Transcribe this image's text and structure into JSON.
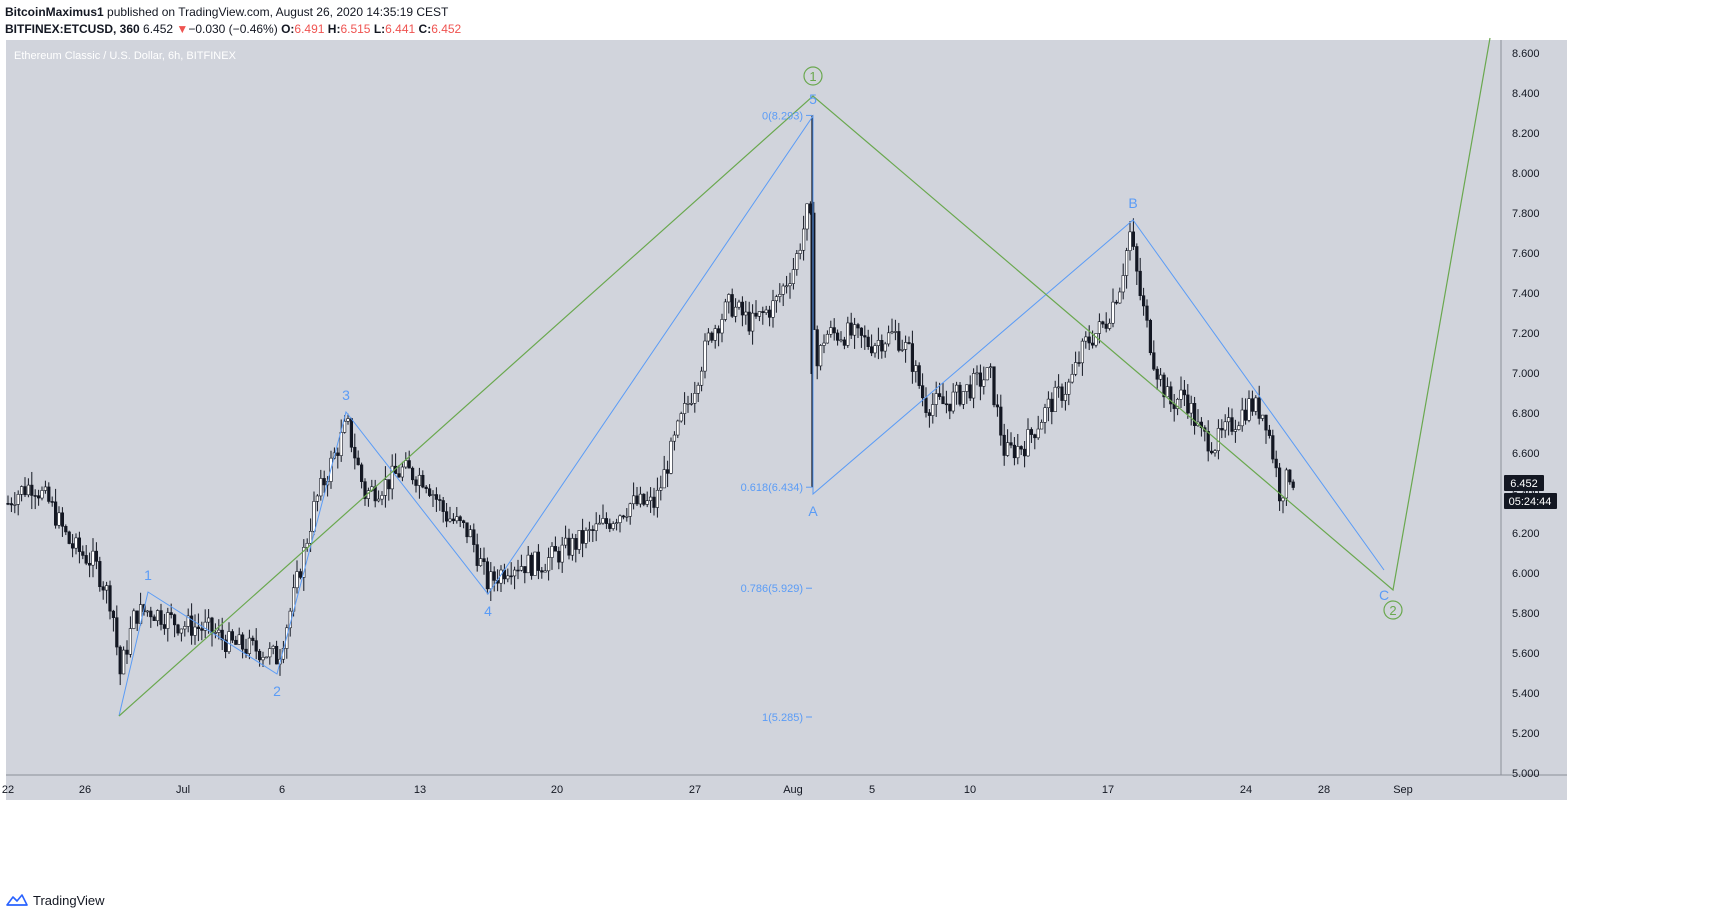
{
  "header": {
    "publisher": "BitcoinMaximus1",
    "published_text": "published on TradingView.com, August 26, 2020 14:35:19 CEST",
    "symbol": "BITFINEX:ETCUSD, 360",
    "last": "6.452",
    "change_arrow": "▼",
    "change": "−0.030 (−0.46%)",
    "o_label": "O:",
    "o_value": "6.491",
    "h_label": "H:",
    "h_value": "6.515",
    "l_label": "L:",
    "l_value": "6.441",
    "c_label": "C:",
    "c_value": "6.452"
  },
  "chart": {
    "watermark": "Ethereum Classic / U.S. Dollar, 6h, BITFINEX",
    "price_tag": "6.452",
    "countdown_tag": "05:24:44"
  },
  "footer": {
    "brand": "TradingView",
    "logo_icon": "tradingview-logo-icon"
  },
  "colors": {
    "plot_bg": "#d1d4dc",
    "candle": "#131722",
    "blue": "#5b9cf6",
    "green": "#6aa84f",
    "price_tag_bg": "#131722"
  },
  "chart_data": {
    "type": "candlestick",
    "title": "Ethereum Classic / U.S. Dollar, 6h, BITFINEX",
    "x_ticks": [
      "22",
      "26",
      "Jul",
      "6",
      "13",
      "20",
      "27",
      "Aug",
      "5",
      "10",
      "17",
      "24",
      "28",
      "Sep"
    ],
    "y_ticks": [
      "8.600",
      "8.400",
      "8.200",
      "8.000",
      "7.800",
      "7.600",
      "7.400",
      "7.200",
      "7.000",
      "6.800",
      "6.600",
      "6.400",
      "6.200",
      "6.000",
      "5.800",
      "5.600",
      "5.400",
      "5.200",
      "5.000"
    ],
    "ylim": [
      5.0,
      8.65
    ],
    "price_path": [
      [
        0,
        6.3
      ],
      [
        15,
        6.4
      ],
      [
        33,
        6.45
      ],
      [
        50,
        6.35
      ],
      [
        70,
        6.15
      ],
      [
        95,
        6.05
      ],
      [
        112,
        5.85
      ],
      [
        120,
        5.5
      ],
      [
        135,
        5.8
      ],
      [
        150,
        5.82
      ],
      [
        180,
        5.75
      ],
      [
        210,
        5.72
      ],
      [
        230,
        5.65
      ],
      [
        260,
        5.62
      ],
      [
        278,
        5.58
      ],
      [
        292,
        5.85
      ],
      [
        315,
        6.35
      ],
      [
        335,
        6.6
      ],
      [
        347,
        6.75
      ],
      [
        365,
        6.4
      ],
      [
        385,
        6.45
      ],
      [
        402,
        6.52
      ],
      [
        425,
        6.48
      ],
      [
        445,
        6.3
      ],
      [
        470,
        6.2
      ],
      [
        488,
        5.95
      ],
      [
        510,
        6.05
      ],
      [
        540,
        6.05
      ],
      [
        575,
        6.15
      ],
      [
        605,
        6.25
      ],
      [
        630,
        6.35
      ],
      [
        655,
        6.35
      ],
      [
        680,
        6.75
      ],
      [
        695,
        6.95
      ],
      [
        710,
        7.2
      ],
      [
        730,
        7.35
      ],
      [
        752,
        7.25
      ],
      [
        775,
        7.35
      ],
      [
        795,
        7.55
      ],
      [
        808,
        7.82
      ],
      [
        812,
        7.7
      ],
      [
        815,
        7.0
      ],
      [
        825,
        7.2
      ],
      [
        850,
        7.2
      ],
      [
        870,
        7.15
      ],
      [
        895,
        7.2
      ],
      [
        910,
        7.1
      ],
      [
        925,
        6.85
      ],
      [
        945,
        6.85
      ],
      [
        960,
        6.9
      ],
      [
        975,
        6.95
      ],
      [
        990,
        7.0
      ],
      [
        1005,
        6.6
      ],
      [
        1025,
        6.65
      ],
      [
        1050,
        6.85
      ],
      [
        1070,
        6.95
      ],
      [
        1085,
        7.15
      ],
      [
        1105,
        7.25
      ],
      [
        1120,
        7.45
      ],
      [
        1130,
        7.7
      ],
      [
        1140,
        7.4
      ],
      [
        1155,
        7.05
      ],
      [
        1170,
        6.85
      ],
      [
        1185,
        6.9
      ],
      [
        1200,
        6.7
      ],
      [
        1215,
        6.65
      ],
      [
        1232,
        6.75
      ],
      [
        1250,
        6.85
      ],
      [
        1265,
        6.8
      ],
      [
        1275,
        6.55
      ],
      [
        1280,
        6.4
      ],
      [
        1290,
        6.5
      ],
      [
        1296,
        6.452
      ]
    ],
    "annotations": {
      "blue_wave_labels": [
        {
          "text": "1",
          "x": 148,
          "price": 5.91,
          "below": false
        },
        {
          "text": "2",
          "x": 277,
          "price": 5.5,
          "below": true
        },
        {
          "text": "3",
          "x": 346,
          "price": 6.81,
          "below": false
        },
        {
          "text": "4",
          "x": 488,
          "price": 5.9,
          "below": true
        },
        {
          "text": "5",
          "x": 813,
          "price": 8.29,
          "below": false
        },
        {
          "text": "A",
          "x": 813,
          "price": 6.4,
          "below": true
        },
        {
          "text": "B",
          "x": 1133,
          "price": 7.77,
          "below": false
        },
        {
          "text": "C",
          "x": 1384,
          "price": 5.98,
          "below": true
        }
      ],
      "green_wave_labels": [
        {
          "text": "1",
          "x": 813,
          "price": 8.49
        },
        {
          "text": "2",
          "x": 1393,
          "price": 5.82
        }
      ],
      "fib_labels": [
        {
          "text": "0(8.293)",
          "price": 8.293
        },
        {
          "text": "0.618(6.434)",
          "price": 6.434
        },
        {
          "text": "0.786(5.929)",
          "price": 5.929
        },
        {
          "text": "1(5.285)",
          "price": 5.285
        }
      ],
      "blue_path": [
        [
          119,
          5.29
        ],
        [
          148,
          5.91
        ],
        [
          277,
          5.5
        ],
        [
          346,
          6.81
        ],
        [
          488,
          5.9
        ],
        [
          813,
          8.29
        ],
        [
          813,
          6.4
        ],
        [
          1133,
          7.77
        ],
        [
          1384,
          6.02
        ]
      ],
      "green_path": [
        [
          119,
          5.29
        ],
        [
          813,
          8.39
        ],
        [
          1393,
          5.92
        ],
        [
          1490,
          8.68
        ]
      ]
    }
  }
}
